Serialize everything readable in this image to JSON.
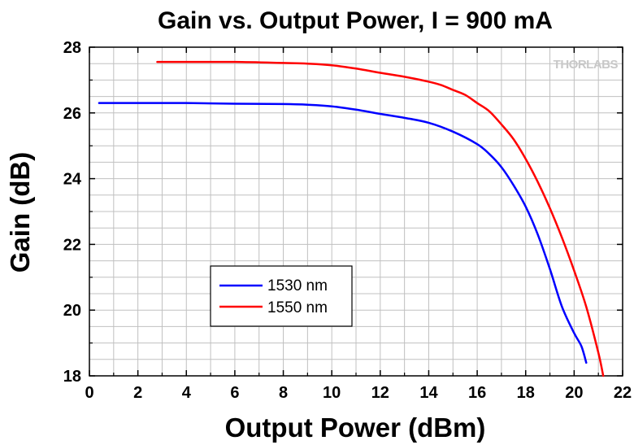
{
  "chart_data": {
    "type": "line",
    "title": "Gain vs. Output Power, I = 900 mA",
    "xlabel": "Output Power (dBm)",
    "ylabel": "Gain (dB)",
    "xlim": [
      0,
      22
    ],
    "ylim": [
      18,
      28
    ],
    "xticks": [
      "0",
      "2",
      "4",
      "6",
      "8",
      "10",
      "12",
      "14",
      "16",
      "18",
      "20",
      "22"
    ],
    "yticks": [
      "18",
      "20",
      "22",
      "24",
      "26",
      "28"
    ],
    "grid": true,
    "legend_position": "lower-left",
    "watermark": "THORLABS",
    "series": [
      {
        "name": "1530 nm",
        "color": "#0000ff",
        "x": [
          0.4,
          2,
          4,
          6,
          8,
          9,
          10,
          11,
          12,
          13,
          14,
          15,
          16,
          16.5,
          17,
          17.5,
          18,
          18.5,
          19,
          19.5,
          20,
          20.3,
          20.5
        ],
        "y": [
          26.3,
          26.3,
          26.3,
          26.28,
          26.27,
          26.25,
          26.2,
          26.1,
          25.97,
          25.85,
          25.7,
          25.43,
          25.05,
          24.75,
          24.35,
          23.8,
          23.15,
          22.3,
          21.25,
          20.1,
          19.3,
          18.9,
          18.4
        ]
      },
      {
        "name": "1550 nm",
        "color": "#ff0000",
        "x": [
          2.8,
          4,
          6,
          8,
          9,
          10,
          11,
          12,
          13,
          14,
          14.5,
          15,
          15.5,
          16,
          16.5,
          17,
          17.5,
          18,
          18.5,
          19,
          19.5,
          20,
          20.5,
          21,
          21.2
        ],
        "y": [
          27.55,
          27.55,
          27.55,
          27.52,
          27.5,
          27.45,
          27.35,
          27.22,
          27.1,
          26.95,
          26.85,
          26.7,
          26.55,
          26.3,
          26.05,
          25.65,
          25.2,
          24.6,
          23.9,
          23.1,
          22.2,
          21.2,
          20.1,
          18.7,
          18.0
        ]
      }
    ]
  }
}
